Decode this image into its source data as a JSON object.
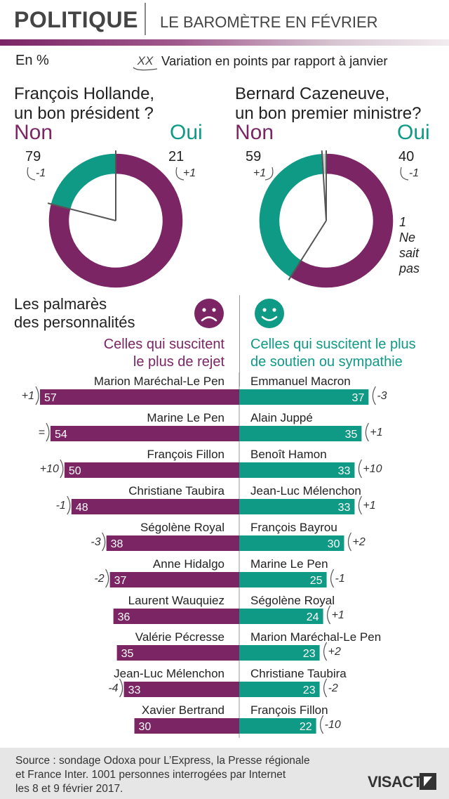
{
  "header": {
    "title": "POLITIQUE",
    "subtitle": "LE BAROMÈTRE EN FÉVRIER"
  },
  "legend": {
    "unit": "En %",
    "variation_symbol": "XX",
    "variation_text": "Variation en points par rapport à janvier"
  },
  "colors": {
    "non": "#7b2565",
    "oui": "#0f9a86",
    "needle": "#555555"
  },
  "chart_data": [
    {
      "type": "pie",
      "title_line1": "François Hollande,",
      "title_line2": "un bon président ?",
      "categories": [
        "Non",
        "Oui"
      ],
      "values": [
        79,
        21
      ],
      "variations": [
        "-1",
        "+1"
      ]
    },
    {
      "type": "pie",
      "title_line1": "Bernard Cazeneuve,",
      "title_line2": "un bon premier ministre?",
      "categories": [
        "Non",
        "Oui",
        "Ne sait pas"
      ],
      "values": [
        59,
        40,
        1
      ],
      "variations": [
        "+1",
        "-1",
        ""
      ],
      "nsp_label": [
        "1",
        "Ne",
        "sait",
        "pas"
      ]
    },
    {
      "type": "bar",
      "title_line1": "Celles qui suscitent",
      "title_line2": "le plus de rejet",
      "categories": [
        "Marion Maréchal-Le Pen",
        "Marine Le Pen",
        "François Fillon",
        "Christiane Taubira",
        "Ségolène Royal",
        "Anne Hidalgo",
        "Laurent Wauquiez",
        "Valérie Pécresse",
        "Jean-Luc Mélenchon",
        "Xavier Bertrand"
      ],
      "values": [
        57,
        54,
        50,
        48,
        38,
        37,
        36,
        35,
        33,
        30
      ],
      "variations": [
        "+1",
        "=",
        "+10",
        "-1",
        "-3",
        "-2",
        "",
        "",
        "-4",
        ""
      ]
    },
    {
      "type": "bar",
      "title_line1": "Celles qui suscitent le plus",
      "title_line2": "de soutien ou sympathie",
      "categories": [
        "Emmanuel Macron",
        "Alain Juppé",
        "Benoît Hamon",
        "Jean-Luc Mélenchon",
        "François Bayrou",
        "Marine Le Pen",
        "Ségolène Royal",
        "Marion Maréchal-Le Pen",
        "Christiane Taubira",
        "François Fillon"
      ],
      "values": [
        37,
        35,
        33,
        33,
        30,
        25,
        24,
        23,
        23,
        22
      ],
      "variations": [
        "-3",
        "+1",
        "+10",
        "+1",
        "+2",
        "-1",
        "+1",
        "+2",
        "-2",
        "-10"
      ]
    }
  ],
  "rankings": {
    "title_line1": "Les palmarès",
    "title_line2": "des personnalités"
  },
  "footer": {
    "source_line1": "Source : sondage Odoxa pour L’Express, la Presse régionale",
    "source_line2": "et France Inter. 1001 personnes interrogées par Internet",
    "source_line3": "les 8 et 9 février 2017.",
    "logo": "VISACTU"
  }
}
